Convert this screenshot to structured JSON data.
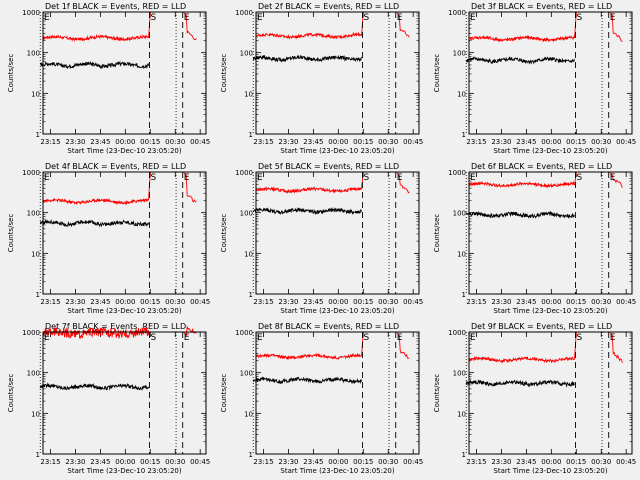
{
  "meta": {
    "start_time_label": "Start Time (23-Dec-10 23:05:20)",
    "ylabel": "Counts/sec"
  },
  "style": {
    "background": "#f0f0f0",
    "events_color": "#000000",
    "lld_color": "#ff0000"
  },
  "chart_data": [
    {
      "type": "line",
      "title": "Det 1f BLACK = Events, RED = LLD",
      "xlabel": "Start Time (23-Dec-10 23:05:20)",
      "ylabel": "Counts/sec",
      "yscale": "log",
      "ylim": [
        1,
        1000
      ],
      "x_ticks": [
        "23:15",
        "23:30",
        "23:45",
        "00:00",
        "00:15",
        "00:30",
        "00:45"
      ],
      "y_ticks": [
        "1",
        "10",
        "100",
        "1000"
      ],
      "markers": {
        "S": "00:15",
        "E": "00:30"
      },
      "series": [
        {
          "name": "Events",
          "color": "#000000",
          "mean": 50
        },
        {
          "name": "LLD",
          "color": "#ff0000",
          "mean": 230
        }
      ]
    },
    {
      "type": "line",
      "title": "Det 2f BLACK = Events, RED = LLD",
      "xlabel": "Start Time (23-Dec-10 23:05:20)",
      "ylabel": "Counts/sec",
      "yscale": "log",
      "ylim": [
        1,
        1000
      ],
      "x_ticks": [
        "23:15",
        "23:30",
        "23:45",
        "00:00",
        "00:15",
        "00:30",
        "00:45"
      ],
      "y_ticks": [
        "1",
        "10",
        "100",
        "1000"
      ],
      "markers": {
        "S": "00:15",
        "E": "00:30"
      },
      "series": [
        {
          "name": "Events",
          "color": "#000000",
          "mean": 72
        },
        {
          "name": "LLD",
          "color": "#ff0000",
          "mean": 260
        }
      ]
    },
    {
      "type": "line",
      "title": "Det 3f BLACK = Events, RED = LLD",
      "xlabel": "Start Time (23-Dec-10 23:05:20)",
      "ylabel": "Counts/sec",
      "yscale": "log",
      "ylim": [
        1,
        1000
      ],
      "x_ticks": [
        "23:15",
        "23:30",
        "23:45",
        "00:00",
        "00:15",
        "00:30",
        "00:45"
      ],
      "y_ticks": [
        "1",
        "10",
        "100",
        "1000"
      ],
      "markers": {
        "S": "00:15",
        "E": "00:30"
      },
      "series": [
        {
          "name": "Events",
          "color": "#000000",
          "mean": 65
        },
        {
          "name": "LLD",
          "color": "#ff0000",
          "mean": 220
        }
      ]
    },
    {
      "type": "line",
      "title": "Det 4f BLACK = Events, RED = LLD",
      "xlabel": "Start Time (23-Dec-10 23:05:20)",
      "ylabel": "Counts/sec",
      "yscale": "log",
      "ylim": [
        1,
        1000
      ],
      "x_ticks": [
        "23:15",
        "23:30",
        "23:45",
        "00:00",
        "00:15",
        "00:30",
        "00:45"
      ],
      "y_ticks": [
        "1",
        "10",
        "100",
        "1000"
      ],
      "markers": {
        "S": "00:15",
        "E": "00:30"
      },
      "series": [
        {
          "name": "Events",
          "color": "#000000",
          "mean": 55
        },
        {
          "name": "LLD",
          "color": "#ff0000",
          "mean": 190
        }
      ]
    },
    {
      "type": "line",
      "title": "Det 5f BLACK = Events, RED = LLD",
      "xlabel": "Start Time (23-Dec-10 23:05:20)",
      "ylabel": "Counts/sec",
      "yscale": "log",
      "ylim": [
        1,
        1000
      ],
      "x_ticks": [
        "23:15",
        "23:30",
        "23:45",
        "00:00",
        "00:15",
        "00:30",
        "00:45"
      ],
      "y_ticks": [
        "1",
        "10",
        "100",
        "1000"
      ],
      "markers": {
        "S": "00:15",
        "E": "00:30"
      },
      "series": [
        {
          "name": "Events",
          "color": "#000000",
          "mean": 110
        },
        {
          "name": "LLD",
          "color": "#ff0000",
          "mean": 360
        }
      ]
    },
    {
      "type": "line",
      "title": "Det 6f BLACK = Events, RED = LLD",
      "xlabel": "Start Time (23-Dec-10 23:05:20)",
      "ylabel": "Counts/sec",
      "yscale": "log",
      "ylim": [
        1,
        1000
      ],
      "x_ticks": [
        "23:15",
        "23:30",
        "23:45",
        "00:00",
        "00:15",
        "00:30",
        "00:45"
      ],
      "y_ticks": [
        "1",
        "10",
        "100",
        "1000"
      ],
      "markers": {
        "S": "00:15",
        "E": "00:30"
      },
      "series": [
        {
          "name": "Events",
          "color": "#000000",
          "mean": 88
        },
        {
          "name": "LLD",
          "color": "#ff0000",
          "mean": 490
        }
      ]
    },
    {
      "type": "line",
      "title": "Det 7f BLACK = Events, RED = LLD",
      "xlabel": "Start Time (23-Dec-10 23:05:20)",
      "ylabel": "Counts/sec",
      "yscale": "log",
      "ylim": [
        1,
        1000
      ],
      "x_ticks": [
        "23:15",
        "23:30",
        "23:45",
        "00:00",
        "00:15",
        "00:30",
        "00:45"
      ],
      "y_ticks": [
        "1",
        "10",
        "100",
        "1000"
      ],
      "markers": {
        "S": "00:15",
        "E": "00:30"
      },
      "series": [
        {
          "name": "Events",
          "color": "#000000",
          "mean": 45
        },
        {
          "name": "LLD",
          "color": "#ff0000",
          "mean": 950
        }
      ]
    },
    {
      "type": "line",
      "title": "Det 8f BLACK = Events, RED = LLD",
      "xlabel": "Start Time (23-Dec-10 23:05:20)",
      "ylabel": "Counts/sec",
      "yscale": "log",
      "ylim": [
        1,
        1000
      ],
      "x_ticks": [
        "23:15",
        "23:30",
        "23:45",
        "00:00",
        "00:15",
        "00:30",
        "00:45"
      ],
      "y_ticks": [
        "1",
        "10",
        "100",
        "1000"
      ],
      "markers": {
        "S": "00:15",
        "E": "00:30"
      },
      "series": [
        {
          "name": "Events",
          "color": "#000000",
          "mean": 65
        },
        {
          "name": "LLD",
          "color": "#ff0000",
          "mean": 250
        }
      ]
    },
    {
      "type": "line",
      "title": "Det 9f BLACK = Events, RED = LLD",
      "xlabel": "Start Time (23-Dec-10 23:05:20)",
      "ylabel": "Counts/sec",
      "yscale": "log",
      "ylim": [
        1,
        1000
      ],
      "x_ticks": [
        "23:15",
        "23:30",
        "23:45",
        "00:00",
        "00:15",
        "00:30",
        "00:45"
      ],
      "y_ticks": [
        "1",
        "10",
        "100",
        "1000"
      ],
      "markers": {
        "S": "00:15",
        "E": "00:30"
      },
      "series": [
        {
          "name": "Events",
          "color": "#000000",
          "mean": 55
        },
        {
          "name": "LLD",
          "color": "#ff0000",
          "mean": 210
        }
      ]
    }
  ]
}
